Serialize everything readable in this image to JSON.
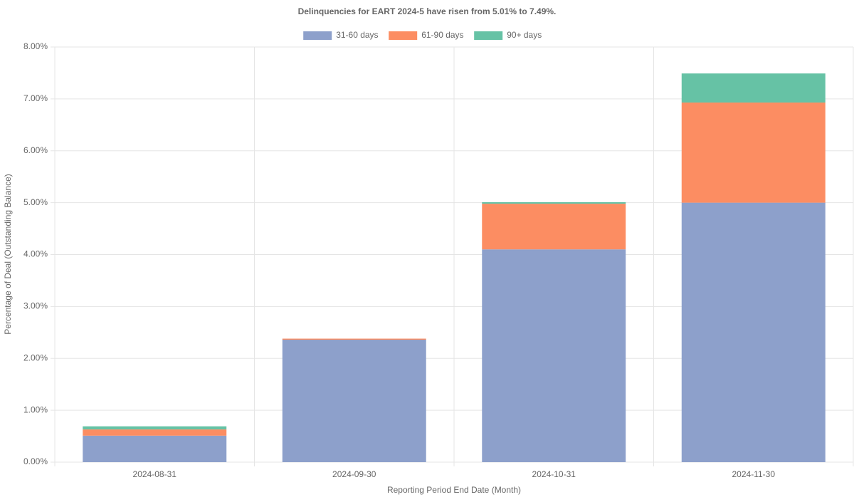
{
  "chart_data": {
    "type": "stacked-bar",
    "title": "Delinquencies for EART 2024-5 have risen from 5.01% to 7.49%.",
    "x_label": "Reporting Period End Date (Month)",
    "y_label": "Percentage of Deal (Outstanding Balance)",
    "categories": [
      "2024-08-31",
      "2024-09-30",
      "2024-10-31",
      "2024-11-30"
    ],
    "series": [
      {
        "name": "31-60 days",
        "color": "#8da0cb",
        "values": [
          0.51,
          2.36,
          4.1,
          5.0
        ]
      },
      {
        "name": "61-90 days",
        "color": "#fc8d62",
        "values": [
          0.12,
          0.02,
          0.88,
          1.93
        ]
      },
      {
        "name": "90+ days",
        "color": "#66c2a5",
        "values": [
          0.06,
          0,
          0.03,
          0.56
        ]
      }
    ],
    "ylim": [
      0,
      8
    ],
    "yticks": [
      {
        "value": 0,
        "label": "0.00%"
      },
      {
        "value": 1,
        "label": "1.00%"
      },
      {
        "value": 2,
        "label": "2.00%"
      },
      {
        "value": 3,
        "label": "3.00%"
      },
      {
        "value": 4,
        "label": "4.00%"
      },
      {
        "value": 5,
        "label": "5.00%"
      },
      {
        "value": 6,
        "label": "6.00%"
      },
      {
        "value": 7,
        "label": "7.00%"
      },
      {
        "value": 8,
        "label": "8.00%"
      }
    ],
    "grid": true,
    "legend": "top"
  }
}
